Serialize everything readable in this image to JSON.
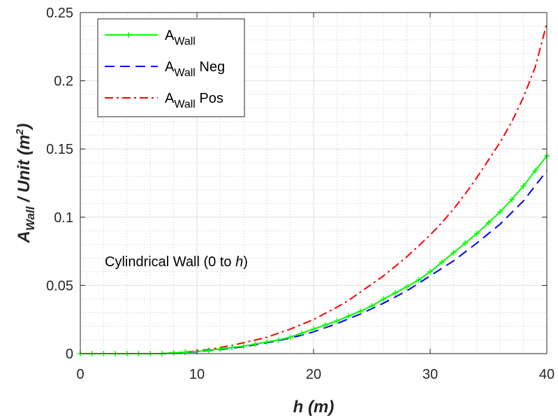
{
  "chart_data": {
    "type": "line",
    "xlabel": {
      "main": "h",
      "rest": " (m)"
    },
    "ylabel": {
      "base": "A",
      "sub": "Wall",
      "mid": " / Unit (m",
      "sup": "2",
      "end": ")"
    },
    "xlim": [
      0,
      40
    ],
    "ylim": [
      0,
      0.25
    ],
    "x_ticks": [
      0,
      10,
      20,
      30,
      40
    ],
    "x_tick_labels": [
      "0",
      "10",
      "20",
      "30",
      "40"
    ],
    "y_ticks": [
      0,
      0.05,
      0.1,
      0.15,
      0.2,
      0.25
    ],
    "y_tick_labels": [
      "0",
      "0.05",
      "0.1",
      "0.15",
      "0.2",
      "0.25"
    ],
    "grid": true,
    "minor_grid": true,
    "legend_position": "top-left",
    "annotation": {
      "text": "Cylindrical Wall (0 to ",
      "italic": "h",
      "end": ")"
    },
    "x": [
      0,
      1,
      2,
      3,
      4,
      5,
      6,
      7,
      8,
      9,
      10,
      11,
      12,
      13,
      14,
      15,
      16,
      17,
      18,
      19,
      20,
      21,
      22,
      23,
      24,
      25,
      26,
      27,
      28,
      29,
      30,
      31,
      32,
      33,
      34,
      35,
      36,
      37,
      38,
      39,
      40
    ],
    "series": [
      {
        "name": "A_Wall",
        "legend": {
          "base": "A",
          "sub": "Wall",
          "suffix": ""
        },
        "color": "#00ff00",
        "style": "solid",
        "marker": "plus",
        "values": [
          0,
          0,
          0,
          0,
          0,
          0,
          0,
          0,
          0.0005,
          0.001,
          0.0015,
          0.0025,
          0.0035,
          0.0045,
          0.0055,
          0.007,
          0.0085,
          0.01,
          0.012,
          0.015,
          0.018,
          0.021,
          0.024,
          0.0275,
          0.031,
          0.035,
          0.04,
          0.0445,
          0.049,
          0.054,
          0.06,
          0.067,
          0.074,
          0.081,
          0.088,
          0.096,
          0.104,
          0.113,
          0.123,
          0.134,
          0.145
        ]
      },
      {
        "name": "A_Wall Neg",
        "legend": {
          "base": "A",
          "sub": "Wall",
          "suffix": " Neg"
        },
        "color": "#0000ff",
        "style": "dashed",
        "marker": "none",
        "values": [
          0,
          0,
          0,
          0,
          0,
          0,
          0,
          0,
          0.0004,
          0.0008,
          0.0013,
          0.0022,
          0.003,
          0.004,
          0.005,
          0.0065,
          0.008,
          0.0095,
          0.0115,
          0.0135,
          0.016,
          0.019,
          0.022,
          0.0255,
          0.029,
          0.033,
          0.037,
          0.0415,
          0.046,
          0.0515,
          0.057,
          0.0625,
          0.068,
          0.0745,
          0.081,
          0.088,
          0.095,
          0.1035,
          0.112,
          0.123,
          0.134
        ]
      },
      {
        "name": "A_Wall Pos",
        "legend": {
          "base": "A",
          "sub": "Wall",
          "suffix": " Pos"
        },
        "color": "#ff0000",
        "style": "dashdot",
        "marker": "none",
        "values": [
          0,
          0,
          0,
          0,
          0,
          0,
          0,
          0,
          0.0006,
          0.0012,
          0.002,
          0.003,
          0.0045,
          0.006,
          0.008,
          0.01,
          0.012,
          0.015,
          0.018,
          0.0215,
          0.025,
          0.0295,
          0.034,
          0.039,
          0.045,
          0.051,
          0.057,
          0.064,
          0.071,
          0.079,
          0.087,
          0.096,
          0.106,
          0.117,
          0.129,
          0.142,
          0.155,
          0.17,
          0.188,
          0.21,
          0.242
        ]
      }
    ]
  }
}
